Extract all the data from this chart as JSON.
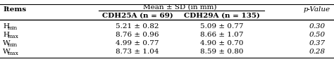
{
  "col_header_main": "Mean ± SD (in mm)",
  "col_header_sub1": "CDH25A (n = 69)",
  "col_header_sub2": "CDH29A (n = 135)",
  "col_header_p": "p-Value",
  "col_header_items": "Items",
  "rows": [
    {
      "item_main": "H",
      "item_sub": "min",
      "val1": "5.21 ± 0.82",
      "val2": "5.09 ± 0.77",
      "pval": "0.30"
    },
    {
      "item_main": "H",
      "item_sub": "max",
      "val1": "8.76 ± 0.96",
      "val2": "8.66 ± 1.07",
      "pval": "0.50"
    },
    {
      "item_main": "W",
      "item_sub": "min",
      "val1": "4.99 ± 0.77",
      "val2": "4.90 ± 0.70",
      "pval": "0.37"
    },
    {
      "item_main": "W",
      "item_sub": "max",
      "val1": "8.73 ± 1.04",
      "val2": "8.59 ± 0.80",
      "pval": "0.28"
    }
  ],
  "bg_color": "#ffffff",
  "text_color": "#000000",
  "line_color": "#000000",
  "font_size": 7.5,
  "bold_font_size": 7.5
}
